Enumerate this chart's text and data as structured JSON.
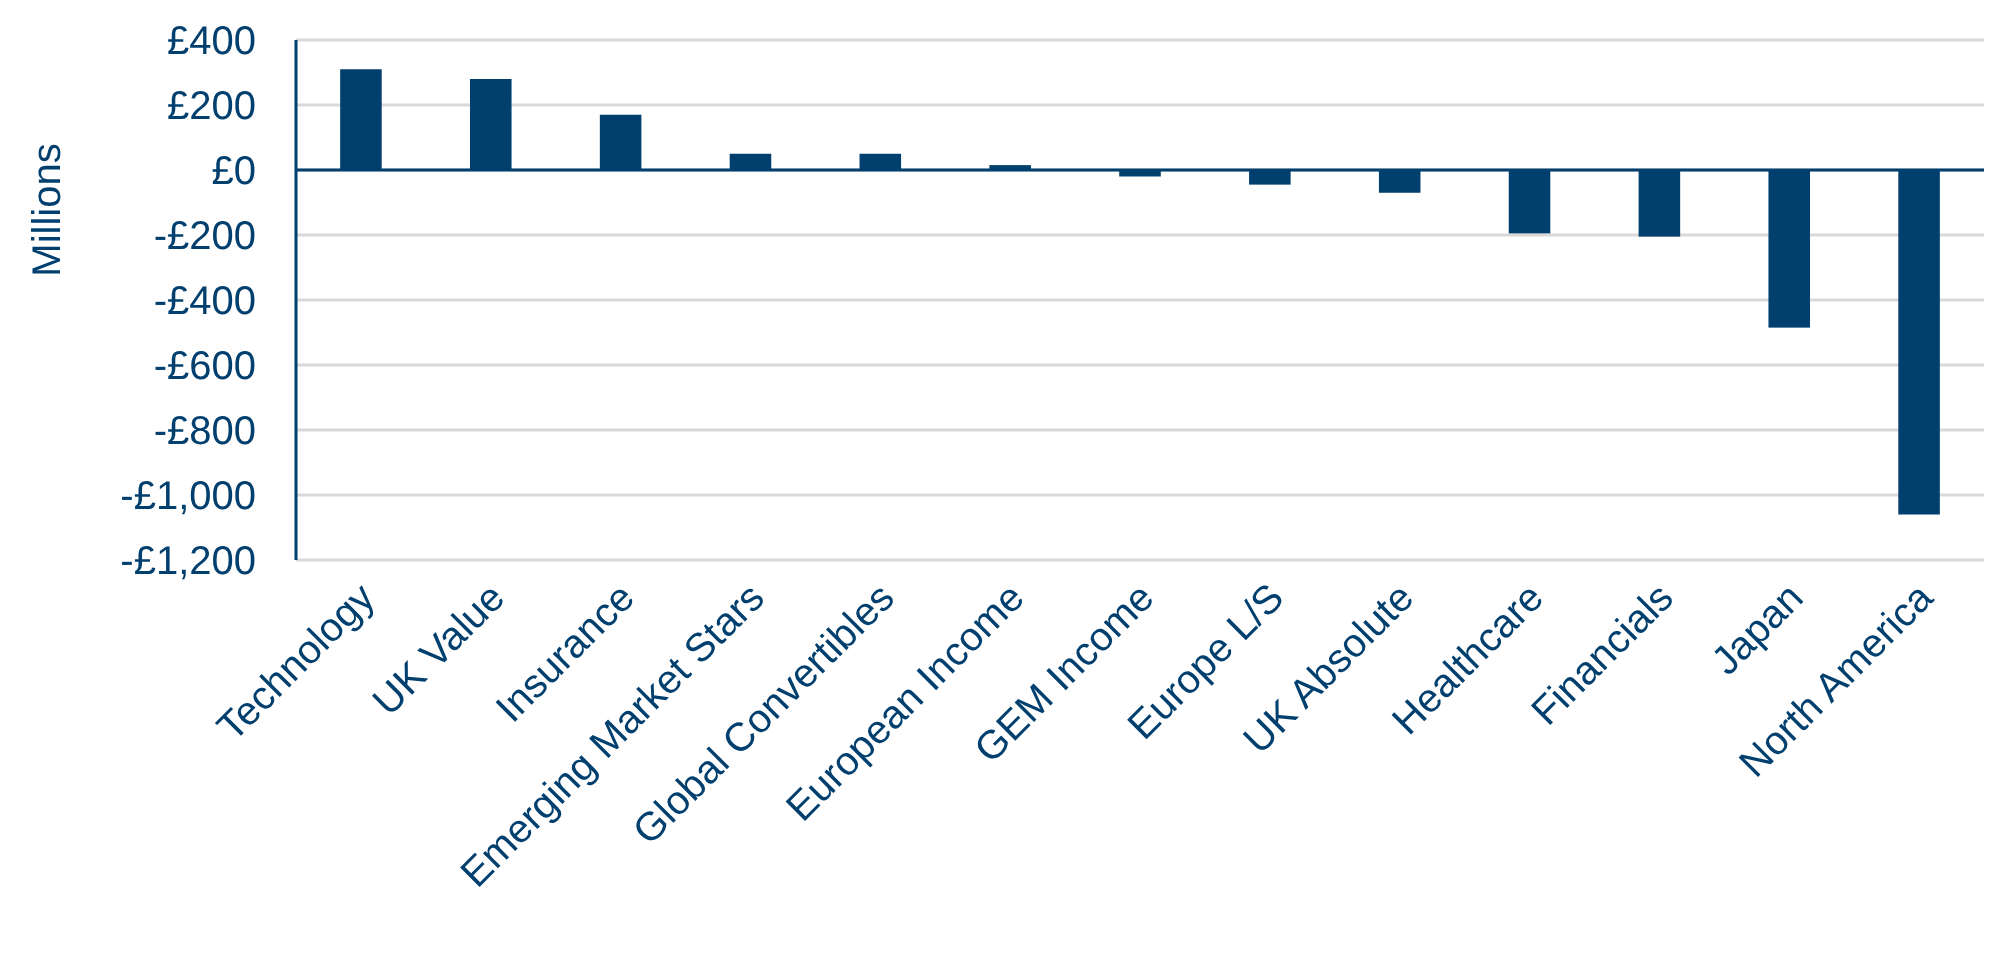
{
  "chart_data": {
    "type": "bar",
    "ylabel": "Millions",
    "categories": [
      "Technology",
      "UK Value",
      "Insurance",
      "Emerging Market Stars",
      "Global Convertibles",
      "European Income",
      "GEM Income",
      "Europe L/S",
      "UK Absolute",
      "Healthcare",
      "Financials",
      "Japan",
      "North America"
    ],
    "values": [
      310,
      280,
      170,
      50,
      50,
      15,
      -20,
      -45,
      -70,
      -195,
      -205,
      -485,
      -1060
    ],
    "color": "#003f6e",
    "ylim": [
      -1200,
      400
    ],
    "yticks": [
      {
        "value": 400,
        "label": "£400"
      },
      {
        "value": 200,
        "label": "£200"
      },
      {
        "value": 0,
        "label": "£0"
      },
      {
        "value": -200,
        "label": "-£200"
      },
      {
        "value": -400,
        "label": "-£400"
      },
      {
        "value": -600,
        "label": "-£600"
      },
      {
        "value": -800,
        "label": "-£800"
      },
      {
        "value": -1000,
        "label": "-£1,000"
      },
      {
        "value": -1200,
        "label": "-£1,200"
      }
    ],
    "grid": "y",
    "ref_lines": [
      {
        "axis": "y",
        "value": 0,
        "color": "#003f6e"
      }
    ]
  }
}
